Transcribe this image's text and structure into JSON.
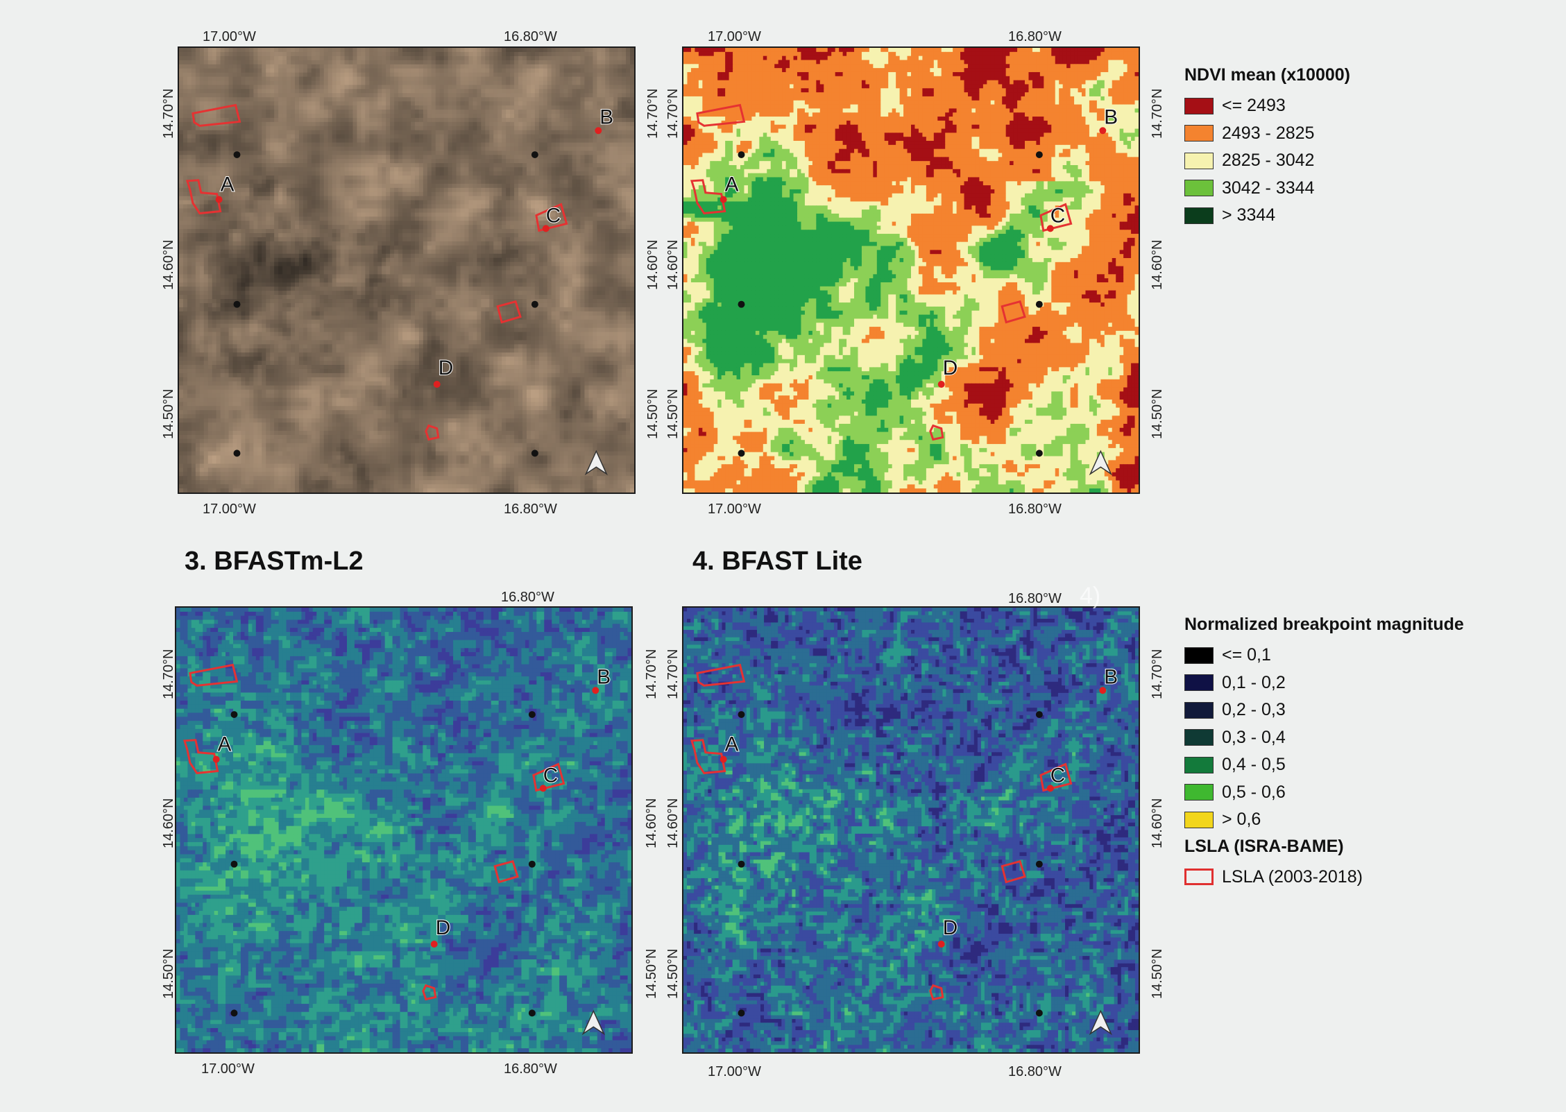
{
  "top_lon_labels": [
    "17.00°W",
    "16.80°W"
  ],
  "bottom_lon_labels": [
    "17.00°W",
    "16.80°W"
  ],
  "lat_labels": [
    "14.70°N",
    "14.60°N",
    "14.50°N"
  ],
  "panels": [
    {
      "id": "p1",
      "title": "",
      "style": "satellite"
    },
    {
      "id": "p2",
      "title": "",
      "style": "ndvi"
    },
    {
      "id": "p3",
      "title": "3. BFASTm-L2",
      "style": "bfast_l2"
    },
    {
      "id": "p4",
      "title": "4. BFAST Lite",
      "style": "bfast_lite"
    }
  ],
  "site_labels": [
    "A",
    "B",
    "C",
    "D"
  ],
  "partial_top_label": "4)",
  "legend_ndvi": {
    "title": "NDVI mean (x10000)",
    "items": [
      {
        "label": "<= 2493",
        "color": "#a50f15"
      },
      {
        "label": "2493 - 2825",
        "color": "#f4832f"
      },
      {
        "label": "2825 - 3042",
        "color": "#f6f2b0"
      },
      {
        "label": "3042 - 3344",
        "color": "#6cc13b"
      },
      {
        "label": "> 3344",
        "color": "#0b3d1c"
      }
    ]
  },
  "legend_breakpoint": {
    "title": "Normalized breakpoint magnitude",
    "items": [
      {
        "label": "<= 0,1",
        "color": "#000000"
      },
      {
        "label": "0,1 - 0,2",
        "color": "#0f1145"
      },
      {
        "label": "0,2 - 0,3",
        "color": "#111a3a"
      },
      {
        "label": "0,3 - 0,4",
        "color": "#0f3a34"
      },
      {
        "label": "0,4 - 0,5",
        "color": "#137a3b"
      },
      {
        "label": "0,5 - 0,6",
        "color": "#3fb830"
      },
      {
        "label": "> 0,6",
        "color": "#f2d61c"
      }
    ]
  },
  "legend_lsla": {
    "title": "LSLA (ISRA-BAME)",
    "items": [
      {
        "label": "LSLA (2003-2018)",
        "color": "#e03030"
      }
    ]
  }
}
